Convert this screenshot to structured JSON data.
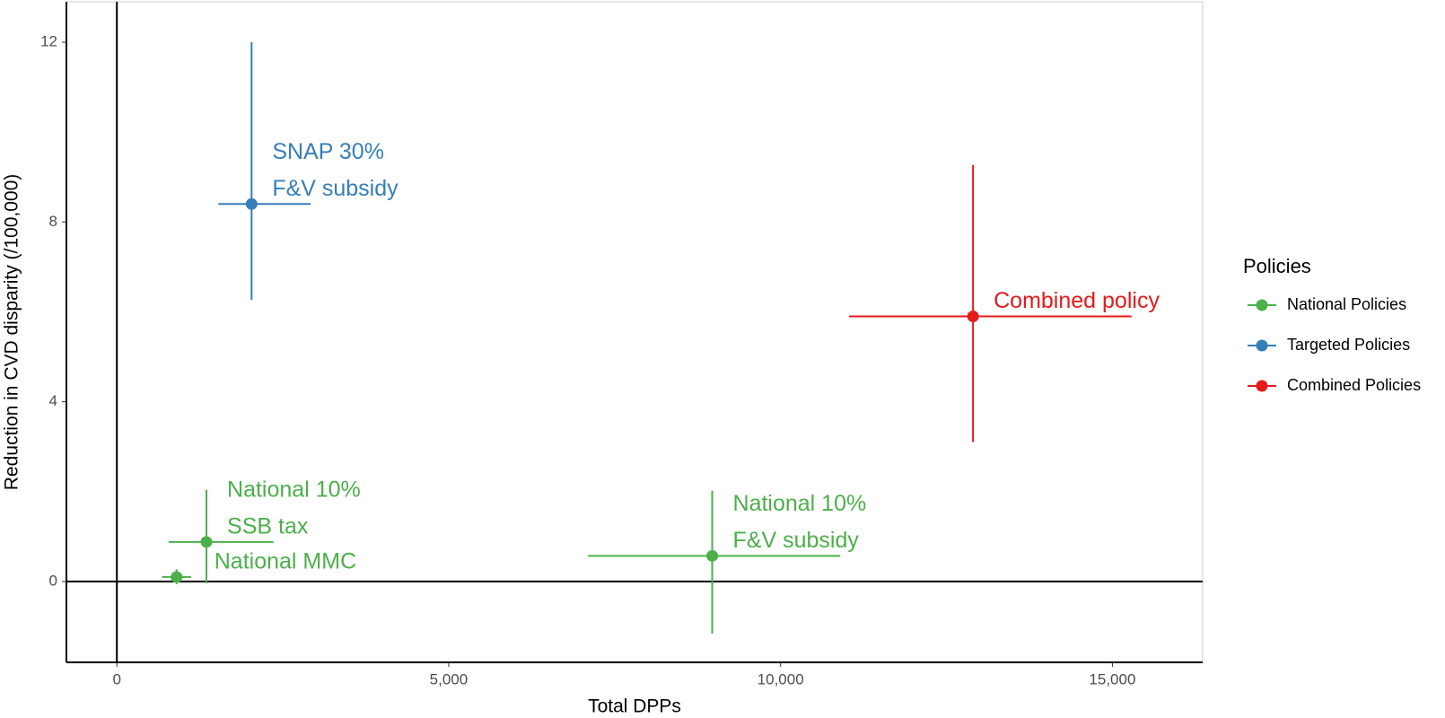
{
  "chart_data": {
    "type": "scatter",
    "x_label": "Total DPPs",
    "y_label": "Reduction in CVD disparity (/100,000)",
    "legend_title": "Policies",
    "xlim": [
      -760,
      16360
    ],
    "ylim": [
      -1.8,
      12.9
    ],
    "xticks": [
      0,
      {
        "value": 5000,
        "label": "5,000"
      },
      {
        "value": 10000,
        "label": "10,000"
      },
      {
        "value": 15000,
        "label": "15,000"
      }
    ],
    "yticks": [
      0,
      4,
      8,
      12
    ],
    "series": [
      {
        "name": "National Policies",
        "color": "#4daf4a",
        "x": [
          1350,
          900,
          8970
        ],
        "values": [
          0.88,
          0.1,
          0.57
        ],
        "x_low": [
          780,
          680,
          7100
        ],
        "x_high": [
          2360,
          1120,
          10900
        ],
        "y_low": [
          -0.04,
          -0.06,
          -1.16
        ],
        "y_high": [
          2.04,
          0.27,
          2.02
        ],
        "labels": [
          [
            "National 10%",
            "SSB tax"
          ],
          [
            "National MMC"
          ],
          [
            "National 10%",
            "F&V subsidy"
          ]
        ]
      },
      {
        "name": "Targeted Policies",
        "color": "#377eb8",
        "x": [
          2030
        ],
        "values": [
          8.4
        ],
        "x_low": [
          1530
        ],
        "x_high": [
          2920
        ],
        "y_low": [
          6.27
        ],
        "y_high": [
          12.0
        ],
        "labels": [
          [
            "SNAP 30%",
            "F&V subsidy"
          ]
        ]
      },
      {
        "name": "Combined Policies",
        "color": "#e41a1c",
        "x": [
          12900
        ],
        "values": [
          5.9
        ],
        "x_low": [
          11030
        ],
        "x_high": [
          15290
        ],
        "y_low": [
          3.1
        ],
        "y_high": [
          9.27
        ],
        "labels": [
          [
            "Combined policy"
          ]
        ]
      }
    ]
  }
}
